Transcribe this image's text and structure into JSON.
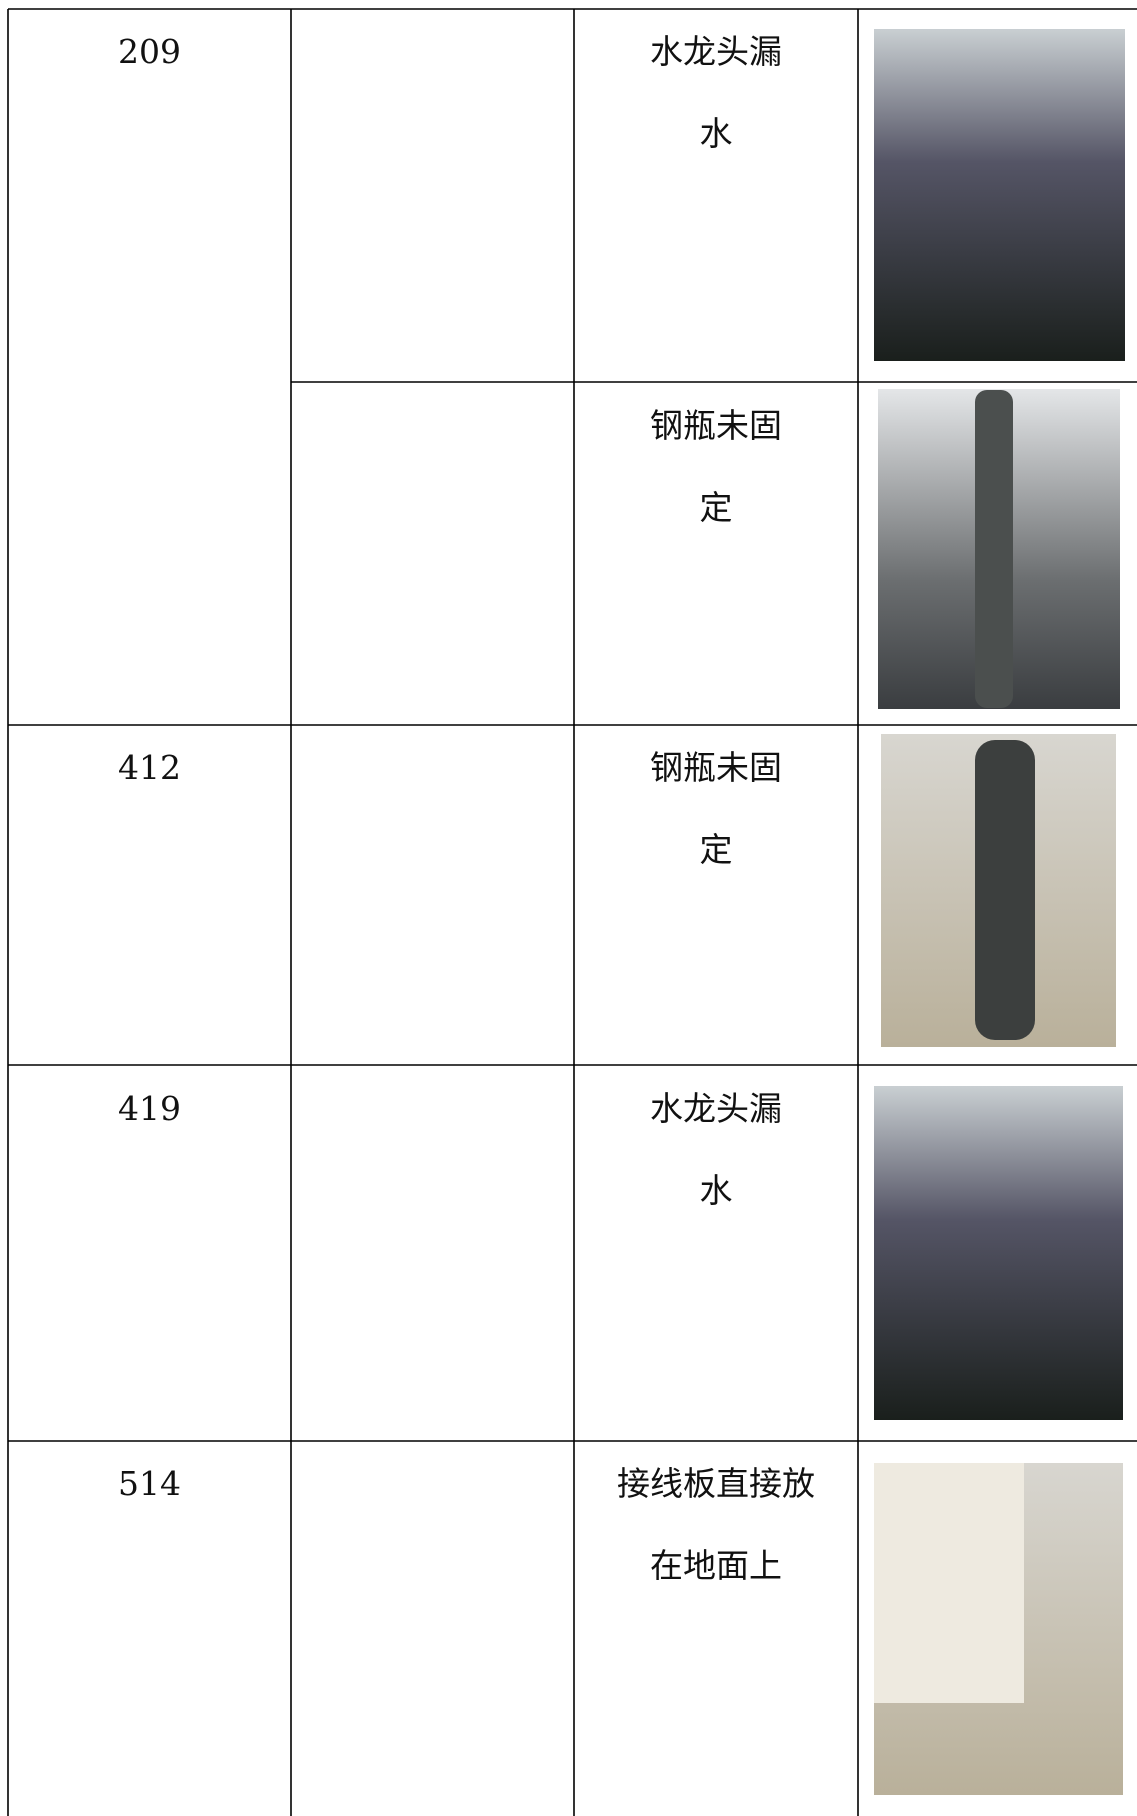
{
  "table": {
    "rows": [
      {
        "room": "209",
        "issue": "水龙头漏水"
      },
      {
        "issue": "钢瓶未固定"
      },
      {
        "room": "412",
        "issue": "钢瓶未固定"
      },
      {
        "room": "419",
        "issue": "水龙头漏水"
      },
      {
        "room": "514",
        "issue": "接线板直接放在地面上"
      }
    ]
  }
}
